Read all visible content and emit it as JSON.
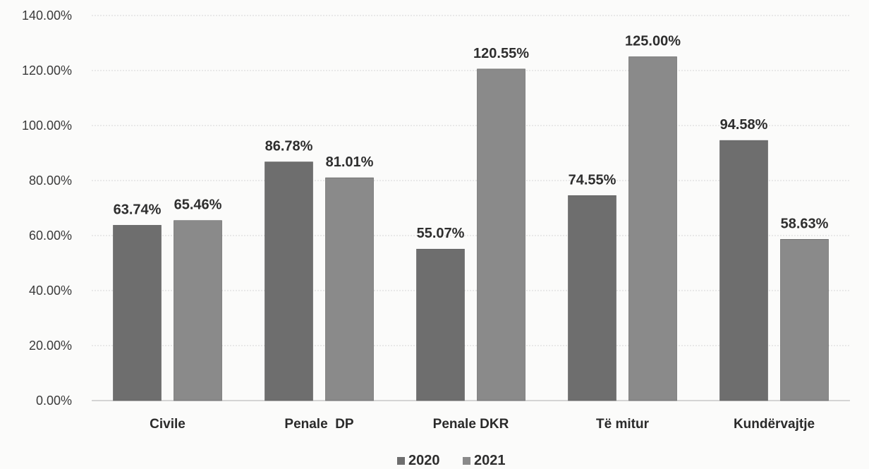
{
  "chart_data": {
    "type": "bar",
    "categories": [
      "Civile",
      "Penale  DP",
      "Penale DKR",
      "Të mitur",
      "Kundërvajtje"
    ],
    "series": [
      {
        "name": "2020",
        "values": [
          63.74,
          86.78,
          55.07,
          74.55,
          94.58
        ],
        "labels": [
          "63.74%",
          "86.78%",
          "55.07%",
          "74.55%",
          "94.58%"
        ],
        "color": "#6e6e6e"
      },
      {
        "name": "2021",
        "values": [
          65.46,
          81.01,
          120.55,
          125.0,
          58.63
        ],
        "labels": [
          "65.46%",
          "81.01%",
          "120.55%",
          "125.00%",
          "58.63%"
        ],
        "color": "#8a8a8a"
      }
    ],
    "ylim": [
      0,
      140
    ],
    "y_ticks": [
      0,
      20,
      40,
      60,
      80,
      100,
      120,
      140
    ],
    "y_tick_labels": [
      "0.00%",
      "20.00%",
      "40.00%",
      "60.00%",
      "80.00%",
      "100.00%",
      "120.00%",
      "140.00%"
    ],
    "grid": true,
    "legend_position": "bottom-center",
    "title": "",
    "xlabel": "",
    "ylabel": ""
  }
}
